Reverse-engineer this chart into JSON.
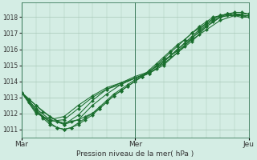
{
  "bg_color": "#d4ede4",
  "grid_color": "#a8c8b8",
  "line_color": "#1a6e2e",
  "marker_color": "#1a6e2e",
  "title": "Pression niveau de la mer( hPa )",
  "xlabel_ticks": [
    "Mar",
    "Mer",
    "Jeu"
  ],
  "xlabel_tick_pos": [
    0.0,
    48.0,
    96.0
  ],
  "ylim": [
    1010.5,
    1018.9
  ],
  "yticks": [
    1011,
    1012,
    1013,
    1014,
    1015,
    1016,
    1017,
    1018
  ],
  "series": [
    {
      "x": [
        0,
        3,
        6,
        9,
        12,
        15,
        18,
        21,
        24,
        27,
        30,
        33,
        36,
        39,
        42,
        45,
        48,
        51,
        54,
        57,
        60,
        63,
        66,
        69,
        72,
        75,
        78,
        81,
        84,
        87,
        90,
        93,
        96
      ],
      "y": [
        1013.3,
        1012.9,
        1012.5,
        1012.1,
        1011.8,
        1011.5,
        1011.4,
        1011.5,
        1011.6,
        1011.8,
        1012.0,
        1012.3,
        1012.7,
        1013.1,
        1013.4,
        1013.7,
        1014.0,
        1014.3,
        1014.7,
        1015.1,
        1015.5,
        1015.9,
        1016.3,
        1016.6,
        1017.0,
        1017.3,
        1017.6,
        1017.9,
        1018.1,
        1018.2,
        1018.2,
        1018.1,
        1018.1
      ]
    },
    {
      "x": [
        0,
        3,
        6,
        9,
        12,
        15,
        18,
        21,
        24,
        27,
        30,
        33,
        36,
        39,
        42,
        45,
        48,
        51,
        54,
        57,
        60,
        63,
        66,
        69,
        72,
        75,
        78,
        81,
        84,
        87,
        90,
        93,
        96
      ],
      "y": [
        1013.3,
        1012.8,
        1012.3,
        1011.8,
        1011.4,
        1011.1,
        1011.0,
        1011.1,
        1011.3,
        1011.6,
        1011.9,
        1012.3,
        1012.7,
        1013.1,
        1013.4,
        1013.7,
        1014.0,
        1014.3,
        1014.6,
        1015.0,
        1015.4,
        1015.8,
        1016.2,
        1016.6,
        1017.0,
        1017.4,
        1017.7,
        1018.0,
        1018.1,
        1018.2,
        1018.2,
        1018.1,
        1018.1
      ]
    },
    {
      "x": [
        0,
        3,
        6,
        9,
        12,
        15,
        18,
        21,
        24,
        27,
        30,
        33,
        36,
        39,
        42,
        45,
        48,
        51,
        54,
        57,
        60,
        63,
        66,
        69,
        72,
        75,
        78,
        81,
        84,
        87,
        90,
        93,
        96
      ],
      "y": [
        1013.3,
        1012.7,
        1012.2,
        1011.7,
        1011.3,
        1011.1,
        1011.0,
        1011.1,
        1011.4,
        1011.7,
        1012.0,
        1012.4,
        1012.8,
        1013.2,
        1013.5,
        1013.8,
        1014.1,
        1014.3,
        1014.5,
        1014.8,
        1015.2,
        1015.6,
        1016.0,
        1016.4,
        1016.8,
        1017.2,
        1017.6,
        1017.9,
        1018.1,
        1018.2,
        1018.2,
        1018.1,
        1018.0
      ]
    },
    {
      "x": [
        0,
        6,
        12,
        18,
        24,
        30,
        36,
        42,
        48,
        54,
        60,
        66,
        72,
        78,
        84,
        90,
        96
      ],
      "y": [
        1013.3,
        1012.5,
        1011.8,
        1011.3,
        1011.6,
        1012.5,
        1013.2,
        1013.8,
        1014.2,
        1014.6,
        1015.3,
        1015.9,
        1016.6,
        1017.2,
        1017.8,
        1018.1,
        1018.1
      ]
    },
    {
      "x": [
        0,
        6,
        12,
        18,
        24,
        30,
        36,
        42,
        48,
        54,
        60,
        66,
        72,
        78,
        84,
        90,
        96
      ],
      "y": [
        1013.3,
        1012.3,
        1011.6,
        1011.3,
        1011.9,
        1012.8,
        1013.5,
        1013.9,
        1014.3,
        1014.6,
        1015.2,
        1016.0,
        1016.7,
        1017.4,
        1018.0,
        1018.2,
        1018.2
      ]
    },
    {
      "x": [
        0,
        6,
        12,
        18,
        24,
        30,
        36,
        42,
        48,
        54,
        60,
        66,
        72,
        75,
        78,
        81,
        84,
        87,
        90,
        93,
        96
      ],
      "y": [
        1013.3,
        1012.1,
        1011.5,
        1011.6,
        1012.3,
        1013.0,
        1013.5,
        1013.8,
        1014.2,
        1014.5,
        1015.0,
        1015.8,
        1016.5,
        1016.9,
        1017.4,
        1017.7,
        1018.0,
        1018.2,
        1018.3,
        1018.3,
        1018.2
      ]
    },
    {
      "x": [
        0,
        6,
        12,
        18,
        24,
        30,
        36,
        42,
        48,
        54,
        60,
        66,
        69,
        72,
        75,
        78,
        81,
        84,
        87,
        90,
        93,
        96
      ],
      "y": [
        1013.3,
        1012.0,
        1011.6,
        1011.8,
        1012.5,
        1013.1,
        1013.6,
        1013.9,
        1014.2,
        1014.5,
        1015.1,
        1015.8,
        1016.2,
        1016.7,
        1017.1,
        1017.5,
        1017.8,
        1018.0,
        1018.1,
        1018.1,
        1018.0,
        1018.0
      ]
    }
  ],
  "xmin": 0,
  "xmax": 96
}
